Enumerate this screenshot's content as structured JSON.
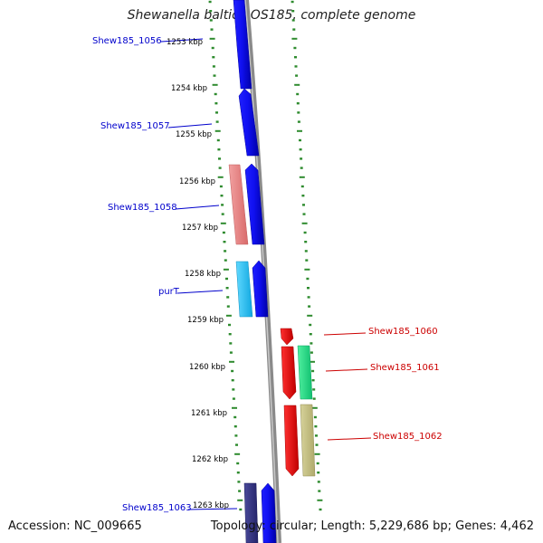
{
  "title": "Shewanella baltica OS185, complete genome",
  "footer": {
    "accession": "Accession: NC_009665",
    "summary": "Topology: circular; Length: 5,229,686 bp; Genes: 4,462"
  },
  "colors": {
    "backbone": "#8a8a8a",
    "ruler_ticks": "#2e8b2e",
    "gene_label_left": "#0000cc",
    "gene_label_right": "#cc0000"
  },
  "ruler_labels": [
    "1253 kbp",
    "1254 kbp",
    "1255 kbp",
    "1256 kbp",
    "1257 kbp",
    "1258 kbp",
    "1259 kbp",
    "1260 kbp",
    "1261 kbp",
    "1262 kbp",
    "1263 kbp"
  ],
  "gene_labels": {
    "shew185_1056": "Shew185_1056",
    "shew185_1057": "Shew185_1057",
    "shew185_1058": "Shew185_1058",
    "purT": "purT",
    "shew185_1060": "Shew185_1060",
    "shew185_1061": "Shew185_1061",
    "shew185_1062": "Shew185_1062",
    "shew185_1063": "Shew185_1063"
  }
}
